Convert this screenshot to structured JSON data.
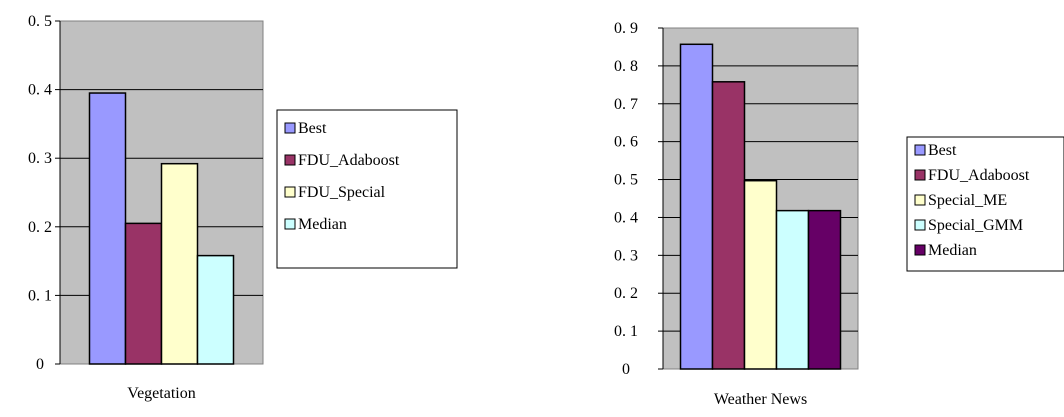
{
  "chart_data": [
    {
      "type": "bar",
      "categories": [
        "Vegetation"
      ],
      "series": [
        {
          "name": "Best",
          "values": [
            0.395
          ],
          "color": "#9999ff"
        },
        {
          "name": "FDU_Adaboost",
          "values": [
            0.205
          ],
          "color": "#993366"
        },
        {
          "name": "FDU_Special",
          "values": [
            0.292
          ],
          "color": "#ffffcc"
        },
        {
          "name": "Median",
          "values": [
            0.158
          ],
          "color": "#ccffff"
        }
      ],
      "yticks": [
        "0",
        "0. 1",
        "0. 2",
        "0. 3",
        "0. 4",
        "0. 5"
      ],
      "ylim": [
        0,
        0.5
      ],
      "grid": true,
      "legend": "right",
      "plot_background": "#c0c0c0"
    },
    {
      "type": "bar",
      "categories": [
        "Weather News"
      ],
      "series": [
        {
          "name": "Best",
          "values": [
            0.857
          ],
          "color": "#9999ff"
        },
        {
          "name": "FDU_Adaboost",
          "values": [
            0.758
          ],
          "color": "#993366"
        },
        {
          "name": "Special_ME",
          "values": [
            0.497
          ],
          "color": "#ffffcc"
        },
        {
          "name": "Special_GMM",
          "values": [
            0.418
          ],
          "color": "#ccffff"
        },
        {
          "name": "Median",
          "values": [
            0.418
          ],
          "color": "#660066"
        }
      ],
      "yticks": [
        "0",
        "0. 1",
        "0. 2",
        "0. 3",
        "0. 4",
        "0. 5",
        "0. 6",
        "0. 7",
        "0. 8",
        "0. 9"
      ],
      "ylim": [
        0,
        0.9
      ],
      "grid": true,
      "legend": "right",
      "plot_background": "#c0c0c0"
    }
  ]
}
